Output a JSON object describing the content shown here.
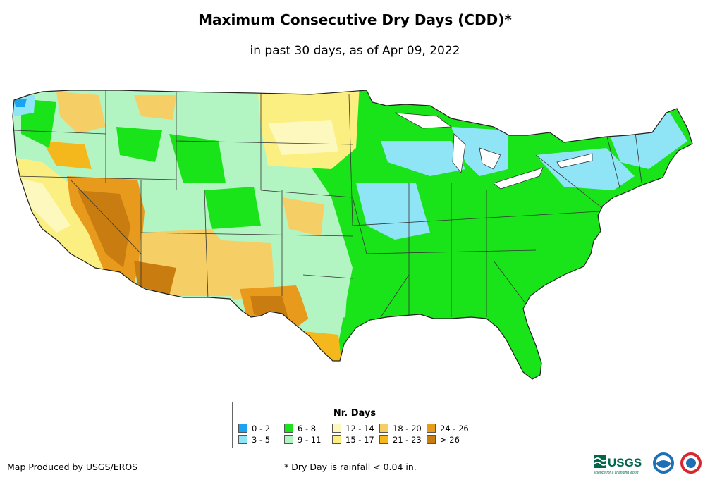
{
  "title": "Maximum Consecutive Dry Days (CDD)*",
  "subtitle": "in past 30 days, as of Apr 09, 2022",
  "legend": {
    "title": "Nr. Days",
    "items": [
      {
        "label": "0 - 2",
        "color": "#1aa3f0"
      },
      {
        "label": "3 - 5",
        "color": "#8fe4f5"
      },
      {
        "label": "6 - 8",
        "color": "#19e319"
      },
      {
        "label": "9 - 11",
        "color": "#b3f5c2"
      },
      {
        "label": "12 - 14",
        "color": "#fdf8be"
      },
      {
        "label": "15 - 17",
        "color": "#fbef82"
      },
      {
        "label": "18 - 20",
        "color": "#f5cf66"
      },
      {
        "label": "21 - 23",
        "color": "#f4b71c"
      },
      {
        "label": "24 - 26",
        "color": "#e89a1c"
      },
      {
        "label": "> 26",
        "color": "#c97d10"
      }
    ]
  },
  "credit": "Map Produced by USGS/EROS",
  "footnote": "* Dry Day is rainfall < 0.04 in.",
  "logos": {
    "usgs": "USGS",
    "usgs_tagline": "science for a changing world"
  }
}
